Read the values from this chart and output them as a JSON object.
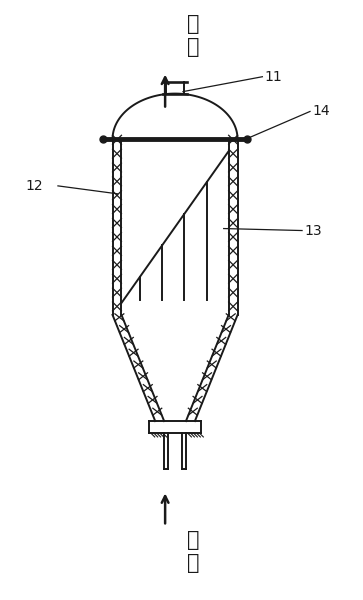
{
  "background_color": "#ffffff",
  "line_color": "#1a1a1a",
  "labels": {
    "outlet_text": "出\n水",
    "inlet_text": "进\n水",
    "label_11": "11",
    "label_12": "12",
    "label_13": "13",
    "label_14": "14"
  },
  "figsize": [
    3.63,
    6.0
  ],
  "dpi": 100
}
